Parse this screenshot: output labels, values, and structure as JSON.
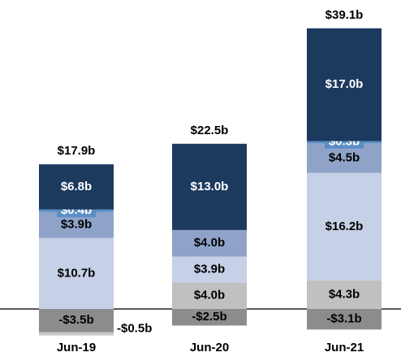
{
  "chart_data": {
    "type": "stacked-bar",
    "categories": [
      "Jun-19",
      "Jun-20",
      "Jun-21"
    ],
    "series": [
      {
        "color": "#c0c0c0",
        "values": [
          null,
          4.0,
          4.3
        ],
        "value_labels": [
          null,
          "$4.0b",
          "$4.3b"
        ]
      },
      {
        "color": "#c6d0e6",
        "values": [
          10.7,
          3.9,
          16.2
        ],
        "value_labels": [
          "$10.7b",
          "$3.9b",
          "$16.2b"
        ]
      },
      {
        "color": "#8fa3c9",
        "values": [
          3.9,
          4.0,
          4.5
        ],
        "value_labels": [
          "$3.9b",
          "$4.0b",
          "$4.5b"
        ]
      },
      {
        "color": "#5b8ec4",
        "values": [
          0.4,
          null,
          0.3
        ],
        "value_labels": [
          "$0.4b",
          null,
          "$0.3b"
        ]
      },
      {
        "color": "#1c3a5e",
        "values": [
          6.8,
          13.0,
          17.0
        ],
        "value_labels": [
          "$6.8b",
          "$13.0b",
          "$17.0b"
        ]
      },
      {
        "color": "#8c8c8c",
        "values": [
          -3.5,
          -2.5,
          -3.1
        ],
        "value_labels": [
          "-$3.5b",
          "-$2.5b",
          "-$3.1b"
        ]
      },
      {
        "color": "#c8c8c8",
        "values": [
          -0.5,
          null,
          null
        ],
        "value_labels": [
          "-$0.5b",
          null,
          null
        ]
      }
    ],
    "totals": {
      "values": [
        17.9,
        22.5,
        39.1
      ],
      "value_labels": [
        "$17.9b",
        "$22.5b",
        "$39.1b"
      ]
    }
  }
}
